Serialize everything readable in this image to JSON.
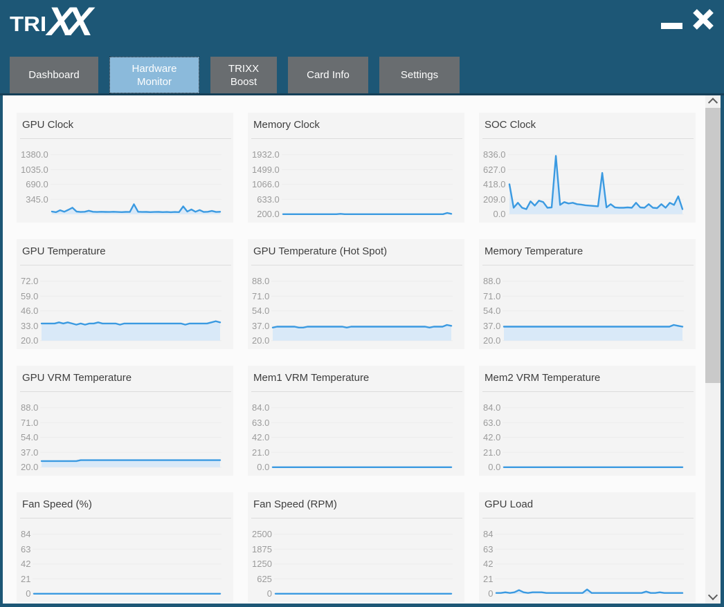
{
  "window": {
    "logo_tri": "TRI",
    "logo_xx": "XX"
  },
  "titlebar": {
    "minimize_icon": "minimize-bar",
    "close_icon": "close-x"
  },
  "tabs": {
    "active_index": 1,
    "items": [
      {
        "label": "Dashboard"
      },
      {
        "label": "Hardware Monitor"
      },
      {
        "label": "TRIXX Boost"
      },
      {
        "label": "Card Info"
      },
      {
        "label": "Settings"
      }
    ]
  },
  "scrollbar": {
    "up_icon": "chevron-up",
    "down_icon": "chevron-down"
  },
  "colors": {
    "header": "#1d5776",
    "header_strip": "#153f57",
    "tab_inactive": "#696d70",
    "tab_active": "#8bbadb",
    "content_bg": "#fbfbfb",
    "card_bg": "#f4f4f4",
    "grid_line": "#ececec",
    "line": "#3b9ae1",
    "fill": "#d9e9f8",
    "tick_text": "#9b9b9b",
    "title_text": "#3e3e3e"
  },
  "chart_data": [
    {
      "type": "line",
      "title": "GPU Clock",
      "tick_labels": [
        "1380.0",
        "1035.0",
        "690.0",
        "345.0",
        ""
      ],
      "ylim": [
        0,
        1380
      ],
      "grid": true,
      "legend": "none",
      "values": [
        60,
        45,
        90,
        55,
        100,
        150,
        60,
        50,
        55,
        80,
        55,
        50,
        55,
        52,
        50,
        55,
        50,
        48,
        52,
        50,
        230,
        55,
        50,
        52,
        48,
        50,
        52,
        48,
        50,
        46,
        50,
        48,
        180,
        60,
        110,
        55,
        95,
        50,
        55,
        75,
        50,
        55
      ]
    },
    {
      "type": "line",
      "title": "Memory Clock",
      "tick_labels": [
        "1932.0",
        "1499.0",
        "1066.0",
        "633.0",
        "200.0"
      ],
      "ylim": [
        200,
        1932
      ],
      "grid": true,
      "legend": "none",
      "values": [
        200,
        200,
        200,
        200,
        200,
        200,
        200,
        200,
        200,
        200,
        200,
        200,
        200,
        200,
        210,
        200,
        200,
        200,
        200,
        200,
        200,
        200,
        200,
        200,
        200,
        200,
        200,
        200,
        200,
        200,
        200,
        200,
        200,
        200,
        200,
        200,
        200,
        200,
        200,
        200,
        235,
        210
      ]
    },
    {
      "type": "line",
      "title": "SOC Clock",
      "tick_labels": [
        "836.0",
        "627.0",
        "418.0",
        "209.0",
        "0.0"
      ],
      "ylim": [
        0,
        836
      ],
      "grid": true,
      "legend": "none",
      "values": [
        420,
        90,
        160,
        90,
        70,
        180,
        120,
        190,
        170,
        90,
        95,
        820,
        130,
        170,
        150,
        160,
        140,
        135,
        125,
        120,
        115,
        110,
        580,
        95,
        140,
        95,
        90,
        90,
        95,
        90,
        160,
        95,
        90,
        140,
        90,
        85,
        140,
        90,
        160,
        130,
        250,
        70
      ]
    },
    {
      "type": "line",
      "title": "GPU Temperature",
      "tick_labels": [
        "72.0",
        "59.0",
        "46.0",
        "33.0",
        "20.0"
      ],
      "ylim": [
        20,
        72
      ],
      "grid": true,
      "legend": "none",
      "values": [
        35,
        35,
        35,
        35,
        36,
        35,
        36,
        35,
        34,
        35,
        34,
        35,
        35,
        36,
        35,
        35,
        35,
        35,
        34,
        35,
        35,
        35,
        35,
        35,
        35,
        35,
        35,
        35,
        35,
        35,
        35,
        35,
        35,
        34,
        35,
        35,
        35,
        35,
        35,
        36,
        37,
        36
      ]
    },
    {
      "type": "line",
      "title": "GPU Temperature (Hot Spot)",
      "tick_labels": [
        "88.0",
        "71.0",
        "54.0",
        "37.0",
        "20.0"
      ],
      "ylim": [
        20,
        88
      ],
      "grid": true,
      "legend": "none",
      "values": [
        35,
        36,
        36,
        36,
        36,
        36,
        35,
        35,
        36,
        36,
        36,
        36,
        36,
        36,
        36,
        36,
        36,
        35,
        36,
        36,
        36,
        36,
        36,
        36,
        36,
        36,
        36,
        36,
        36,
        36,
        36,
        36,
        36,
        36,
        36,
        36,
        35,
        36,
        36,
        36,
        38,
        37
      ]
    },
    {
      "type": "line",
      "title": "Memory Temperature",
      "tick_labels": [
        "88.0",
        "71.0",
        "54.0",
        "37.0",
        "20.0"
      ],
      "ylim": [
        20,
        88
      ],
      "grid": true,
      "legend": "none",
      "values": [
        36,
        36,
        36,
        36,
        36,
        36,
        36,
        36,
        36,
        36,
        36,
        36,
        36,
        36,
        36,
        36,
        36,
        36,
        36,
        36,
        36,
        36,
        36,
        36,
        36,
        36,
        36,
        36,
        36,
        36,
        36,
        36,
        36,
        36,
        36,
        36,
        36,
        36,
        36,
        38,
        37,
        36
      ]
    },
    {
      "type": "line",
      "title": "GPU VRM Temperature",
      "tick_labels": [
        "88.0",
        "71.0",
        "54.0",
        "37.0",
        "20.0"
      ],
      "ylim": [
        20,
        88
      ],
      "grid": true,
      "legend": "none",
      "values": [
        27,
        27,
        27,
        27,
        27,
        27,
        27,
        27,
        27,
        28,
        28,
        28,
        28,
        28,
        28,
        28,
        28,
        28,
        28,
        28,
        28,
        28,
        28,
        28,
        28,
        28,
        28,
        28,
        28,
        28,
        28,
        28,
        28,
        28,
        28,
        28,
        28,
        28,
        28,
        28,
        28,
        28
      ]
    },
    {
      "type": "line",
      "title": "Mem1 VRM Temperature",
      "tick_labels": [
        "84.0",
        "63.0",
        "42.0",
        "21.0",
        "0.0"
      ],
      "ylim": [
        0,
        84
      ],
      "grid": true,
      "legend": "none",
      "values": [
        0,
        0,
        0,
        0,
        0,
        0,
        0,
        0,
        0,
        0,
        0,
        0,
        0,
        0,
        0,
        0,
        0,
        0,
        0,
        0,
        0
      ]
    },
    {
      "type": "line",
      "title": "Mem2 VRM Temperature",
      "tick_labels": [
        "84.0",
        "63.0",
        "42.0",
        "21.0",
        "0.0"
      ],
      "ylim": [
        0,
        84
      ],
      "grid": true,
      "legend": "none",
      "values": [
        0,
        0,
        0,
        0,
        0,
        0,
        0,
        0,
        0,
        0,
        0,
        0,
        0,
        0,
        0,
        0,
        0,
        0,
        0,
        0,
        0
      ]
    },
    {
      "type": "line",
      "title": "Fan Speed (%)",
      "tick_labels": [
        "84",
        "63",
        "42",
        "21",
        "0"
      ],
      "ylim": [
        0,
        84
      ],
      "grid": true,
      "legend": "none",
      "values": [
        0,
        0,
        0,
        0,
        0,
        0,
        0,
        0,
        0,
        0,
        0,
        0,
        0,
        0,
        0,
        0,
        0,
        0,
        0,
        0,
        0
      ]
    },
    {
      "type": "line",
      "title": "Fan Speed (RPM)",
      "tick_labels": [
        "2500",
        "1875",
        "1250",
        "625",
        "0"
      ],
      "ylim": [
        0,
        2500
      ],
      "grid": true,
      "legend": "none",
      "values": [
        0,
        0,
        0,
        0,
        0,
        0,
        0,
        0,
        0,
        0,
        0,
        0,
        0,
        0,
        0,
        0,
        0,
        0,
        0,
        0,
        0
      ]
    },
    {
      "type": "line",
      "title": "GPU Load",
      "tick_labels": [
        "84",
        "63",
        "42",
        "21",
        "0"
      ],
      "ylim": [
        0,
        84
      ],
      "grid": true,
      "legend": "none",
      "values": [
        1,
        1,
        2,
        1,
        2,
        5,
        2,
        1,
        2,
        2,
        2,
        1,
        1,
        1,
        1,
        1,
        1,
        1,
        1,
        1,
        6,
        1,
        1,
        1,
        1,
        1,
        1,
        1,
        1,
        1,
        1,
        1,
        1,
        3,
        1,
        1,
        2,
        1,
        1,
        1,
        1,
        1
      ]
    }
  ]
}
